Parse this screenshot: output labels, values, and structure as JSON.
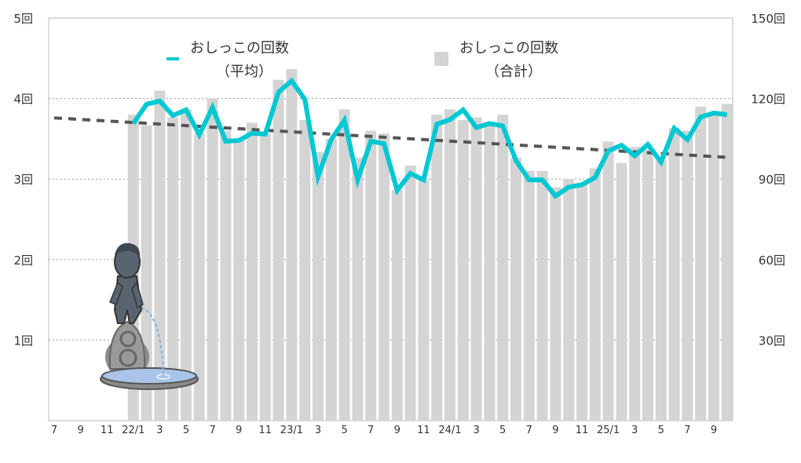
{
  "chart_data": {
    "type": "bar+line",
    "title": "",
    "legend": {
      "placement": "top",
      "items": [
        {
          "label_line1": "おしっこの回数",
          "label_line2": "（平均）",
          "marker": "line",
          "color": "#00c8d2"
        },
        {
          "label_line1": "おしっこの回数",
          "label_line2": "（合計）",
          "marker": "square",
          "color": "#d4d4d4"
        }
      ]
    },
    "left_axis": {
      "range": [
        0,
        5
      ],
      "ticks": [
        {
          "v": 1,
          "label": "1回"
        },
        {
          "v": 2,
          "label": "2回"
        },
        {
          "v": 3,
          "label": "3回"
        },
        {
          "v": 4,
          "label": "4回"
        },
        {
          "v": 5,
          "label": "5回"
        }
      ]
    },
    "right_axis": {
      "range": [
        0,
        150
      ],
      "ticks": [
        {
          "v": 30,
          "label": "30回"
        },
        {
          "v": 60,
          "label": "60回"
        },
        {
          "v": 90,
          "label": "90回"
        },
        {
          "v": 120,
          "label": "120回"
        },
        {
          "v": 150,
          "label": "150回"
        }
      ]
    },
    "grid": "horizontal dotted",
    "x_axis": {
      "start_month": "2021-07",
      "end_month": "2025-10",
      "tick_labels": [
        "7",
        "9",
        "11",
        "22/1",
        "3",
        "5",
        "7",
        "9",
        "11",
        "23/1",
        "3",
        "5",
        "7",
        "9",
        "11",
        "24/1",
        "3",
        "5",
        "7",
        "9",
        "11",
        "25/1",
        "3",
        "5",
        "7",
        "9"
      ]
    },
    "series": [
      {
        "name": "おしっこの回数（合計）",
        "type": "bar",
        "axis": "right",
        "color": "#d4d4d4",
        "start_month": "2022-01",
        "values": [
          114,
          110,
          123,
          113,
          116,
          107,
          120,
          108,
          105,
          111,
          107,
          127,
          131,
          112,
          100,
          105,
          116,
          98,
          108,
          107,
          86,
          95,
          90,
          114,
          116,
          112,
          113,
          111,
          114,
          98,
          93,
          93,
          87,
          90,
          88,
          94,
          104,
          96,
          102,
          101,
          97,
          109,
          108,
          117,
          115,
          118
        ]
      },
      {
        "name": "おしっこの回数（平均）",
        "type": "line",
        "axis": "left",
        "color": "#00c8d2",
        "start_month": "2022-01",
        "values": [
          3.69,
          3.93,
          3.97,
          3.79,
          3.86,
          3.55,
          3.89,
          3.47,
          3.48,
          3.57,
          3.56,
          4.08,
          4.22,
          3.99,
          3.03,
          3.49,
          3.73,
          2.99,
          3.47,
          3.44,
          2.86,
          3.07,
          2.99,
          3.68,
          3.74,
          3.86,
          3.64,
          3.69,
          3.66,
          3.23,
          2.99,
          2.99,
          2.79,
          2.9,
          2.93,
          3.02,
          3.35,
          3.42,
          3.29,
          3.43,
          3.21,
          3.63,
          3.49,
          3.77,
          3.82,
          3.8
        ]
      },
      {
        "type": "trendline",
        "axis": "left",
        "color": "#555555",
        "style": "dashed",
        "from": {
          "month": "2021-07",
          "value": 3.76
        },
        "to": {
          "month": "2025-10",
          "value": 3.27
        }
      }
    ],
    "illustration": "manneken-pis-statue"
  }
}
